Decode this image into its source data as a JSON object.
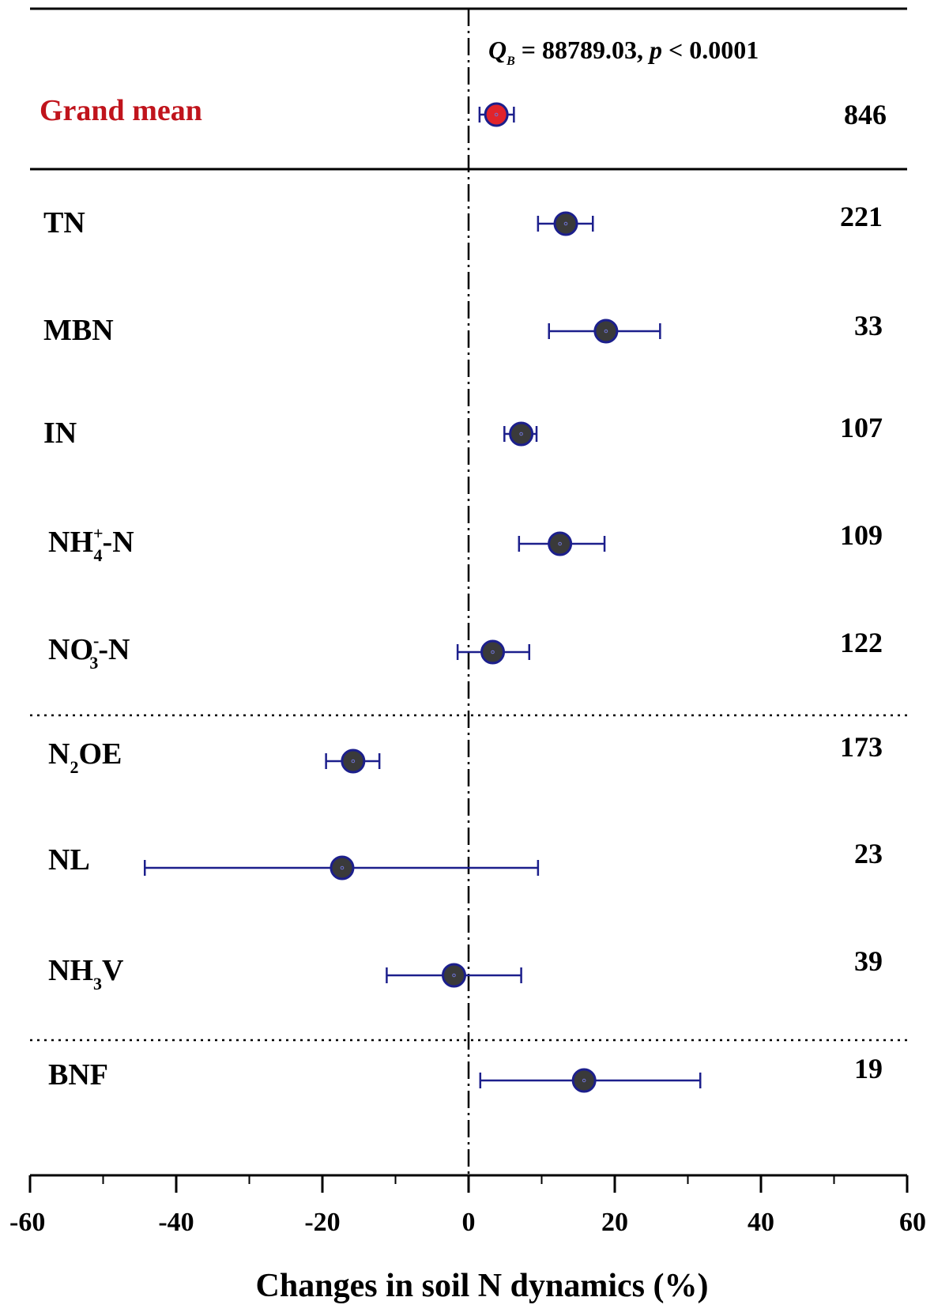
{
  "chart_data": {
    "type": "forest",
    "xlabel": "Changes in soil N dynamics (%)",
    "xlim": [
      -60,
      60
    ],
    "xticks": [
      "-60",
      "-40",
      "-20",
      "0",
      "20",
      "40",
      "60"
    ],
    "stat": {
      "q_symbol": "Q",
      "q_sub": "B",
      "eq": " = ",
      "q_value": "88789.03, ",
      "p_symbol": "p",
      "p_text": " < 0.0001"
    },
    "grand_mean": {
      "label": "Grand mean",
      "mean": 3.8,
      "lower": 1.5,
      "upper": 6.2,
      "n": "846",
      "color": "#e1242b"
    },
    "rows": [
      {
        "key": "TN",
        "base": "TN",
        "sub": "",
        "sup": "",
        "suffix": "",
        "mean": 13.3,
        "lower": 9.5,
        "upper": 17.0,
        "n": "221"
      },
      {
        "key": "MBN",
        "base": "MBN",
        "sub": "",
        "sup": "",
        "suffix": "",
        "mean": 18.8,
        "lower": 11.0,
        "upper": 26.2,
        "n": "33"
      },
      {
        "key": "IN",
        "base": "IN",
        "sub": "",
        "sup": "",
        "suffix": "",
        "mean": 7.2,
        "lower": 4.9,
        "upper": 9.3,
        "n": "107"
      },
      {
        "key": "NH4N",
        "base": "NH",
        "sub": "4",
        "sup": "+",
        "suffix": "-N",
        "mean": 12.5,
        "lower": 6.9,
        "upper": 18.6,
        "n": "109"
      },
      {
        "key": "NO3N",
        "base": "NO",
        "sub": "3",
        "sup": "-",
        "suffix": "-N",
        "mean": 3.3,
        "lower": -1.5,
        "upper": 8.3,
        "n": "122"
      },
      {
        "key": "N2OE",
        "base": "N",
        "sub": "2",
        "sup": "",
        "suffix": "OE",
        "mean": -15.8,
        "lower": -19.5,
        "upper": -12.2,
        "n": "173"
      },
      {
        "key": "NL",
        "base": "NL",
        "sub": "",
        "sup": "",
        "suffix": "",
        "mean": -17.3,
        "lower": -44.3,
        "upper": 9.5,
        "n": "23"
      },
      {
        "key": "NH3V",
        "base": "NH",
        "sub": "3",
        "sup": "",
        "suffix": "V",
        "mean": -2.0,
        "lower": -11.2,
        "upper": 7.2,
        "n": "39"
      },
      {
        "key": "BNF",
        "base": "BNF",
        "sub": "",
        "sup": "",
        "suffix": "",
        "mean": 15.8,
        "lower": 1.6,
        "upper": 31.7,
        "n": "19"
      }
    ],
    "colors": {
      "point_fill": "#3a3a3a",
      "point_stroke": "#1c1f8c",
      "whisker": "#1c1f8c",
      "axis": "#000000"
    }
  }
}
